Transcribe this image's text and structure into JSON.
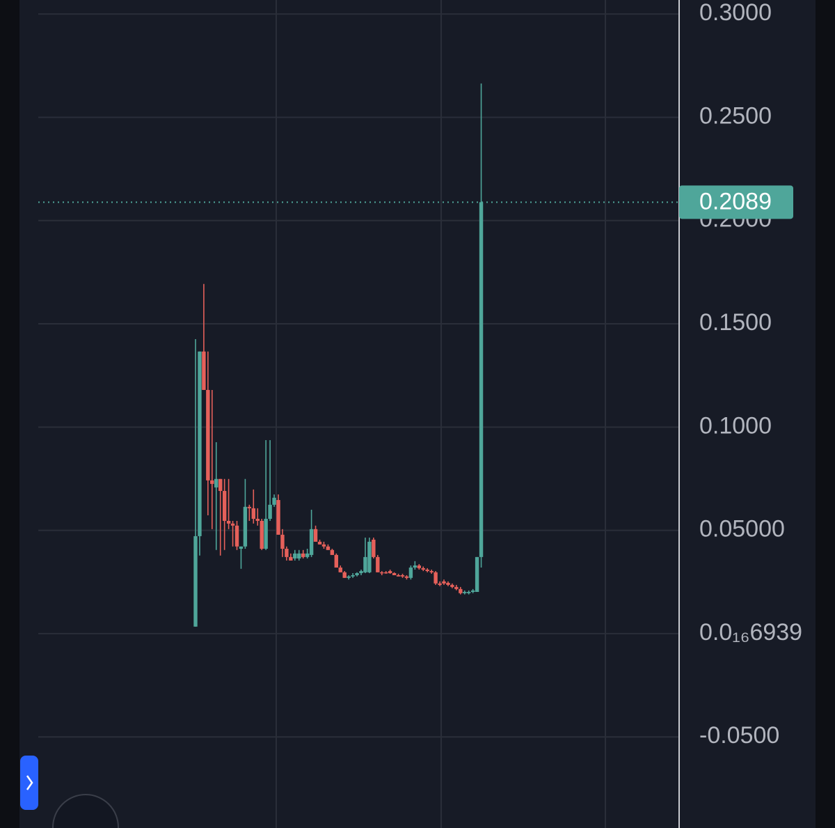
{
  "chart_data": {
    "type": "candlestick",
    "up_color": "#4fa69a",
    "down_color": "#e5605a",
    "grid": true,
    "ylim": [
      -0.0941,
      0.3068
    ],
    "yticks": [
      {
        "value": 0.3,
        "label": "0.3000"
      },
      {
        "value": 0.25,
        "label": "0.2500"
      },
      {
        "value": 0.2,
        "label": "0.2000"
      },
      {
        "value": 0.15,
        "label": "0.1500"
      },
      {
        "value": 0.1,
        "label": "0.1000"
      },
      {
        "value": 0.05,
        "label": "0.05000"
      },
      {
        "value": 6.939e-17,
        "label": "0.0₁₆6939"
      },
      {
        "value": -0.05,
        "label": "-0.0500"
      }
    ],
    "last_price": 0.2089,
    "open": [
      0.0034,
      0.0472,
      0.1366,
      0.118,
      0.0742,
      0.0708,
      0.0749,
      0.0691,
      0.0546,
      0.0533,
      0.0523,
      0.0411,
      0.0422,
      0.0614,
      0.0607,
      0.0556,
      0.0546,
      0.0411,
      0.0556,
      0.0624,
      0.0647,
      0.0479,
      0.0411,
      0.0371,
      0.0364,
      0.0364,
      0.0388,
      0.0371,
      0.0381,
      0.0506,
      0.0445,
      0.0432,
      0.0422,
      0.0405,
      0.0381,
      0.032,
      0.0297,
      0.027,
      0.0277,
      0.0283,
      0.0293,
      0.0297,
      0.0297,
      0.0455,
      0.0371,
      0.0297,
      0.0297,
      0.0303,
      0.0293,
      0.0283,
      0.0283,
      0.0277,
      0.027,
      0.032,
      0.033,
      0.0317,
      0.031,
      0.0303,
      0.0297,
      0.0243,
      0.0253,
      0.0246,
      0.0236,
      0.0226,
      0.0216,
      0.0196,
      0.0196,
      0.0202,
      0.0202,
      0.0371
    ],
    "high": [
      0.1426,
      0.1366,
      0.1693,
      0.1366,
      0.118,
      0.0927,
      0.0749,
      0.0749,
      0.0749,
      0.0546,
      0.0546,
      0.0422,
      0.0749,
      0.0624,
      0.0698,
      0.0607,
      0.0556,
      0.0937,
      0.0937,
      0.0674,
      0.0674,
      0.0506,
      0.0422,
      0.0388,
      0.0405,
      0.0405,
      0.0405,
      0.0411,
      0.06,
      0.0523,
      0.0455,
      0.0445,
      0.0432,
      0.0411,
      0.0388,
      0.033,
      0.0303,
      0.0283,
      0.0293,
      0.0297,
      0.031,
      0.0465,
      0.0465,
      0.0465,
      0.0381,
      0.0303,
      0.0303,
      0.031,
      0.0297,
      0.029,
      0.029,
      0.0283,
      0.033,
      0.0351,
      0.0337,
      0.0325,
      0.0317,
      0.031,
      0.0303,
      0.0253,
      0.0262,
      0.0253,
      0.0243,
      0.0236,
      0.0226,
      0.0209,
      0.0209,
      0.0216,
      0.0371,
      0.2664
    ],
    "low": [
      0.0034,
      0.0378,
      0.118,
      0.0573,
      0.0506,
      0.0405,
      0.0378,
      0.0405,
      0.0506,
      0.0422,
      0.0405,
      0.0314,
      0.0411,
      0.0546,
      0.0533,
      0.0523,
      0.0405,
      0.0405,
      0.0546,
      0.0614,
      0.0479,
      0.0371,
      0.0354,
      0.0354,
      0.0354,
      0.0354,
      0.0364,
      0.0364,
      0.0371,
      0.0445,
      0.0432,
      0.0411,
      0.0405,
      0.0381,
      0.032,
      0.0297,
      0.027,
      0.0262,
      0.027,
      0.0277,
      0.0283,
      0.0293,
      0.0293,
      0.0364,
      0.0297,
      0.0283,
      0.029,
      0.029,
      0.0283,
      0.0277,
      0.027,
      0.0262,
      0.0262,
      0.031,
      0.031,
      0.0303,
      0.0297,
      0.029,
      0.0236,
      0.023,
      0.0236,
      0.023,
      0.022,
      0.021,
      0.019,
      0.019,
      0.019,
      0.0196,
      0.0202,
      0.032
    ],
    "close": [
      0.0472,
      0.1366,
      0.118,
      0.0742,
      0.0725,
      0.0749,
      0.0691,
      0.0546,
      0.0533,
      0.0523,
      0.0422,
      0.0422,
      0.0614,
      0.0607,
      0.0556,
      0.0546,
      0.0411,
      0.0556,
      0.0624,
      0.0658,
      0.0479,
      0.0411,
      0.0371,
      0.0354,
      0.0388,
      0.0388,
      0.0371,
      0.0388,
      0.0506,
      0.0445,
      0.0432,
      0.0422,
      0.0405,
      0.0381,
      0.032,
      0.0297,
      0.027,
      0.0277,
      0.0283,
      0.0293,
      0.0303,
      0.0371,
      0.0445,
      0.0371,
      0.0297,
      0.0293,
      0.0293,
      0.0293,
      0.0283,
      0.0277,
      0.0277,
      0.027,
      0.032,
      0.033,
      0.0317,
      0.031,
      0.0303,
      0.0297,
      0.0243,
      0.0236,
      0.0243,
      0.0236,
      0.0226,
      0.0216,
      0.0196,
      0.0202,
      0.0202,
      0.0209,
      0.0371,
      0.2089
    ]
  }
}
